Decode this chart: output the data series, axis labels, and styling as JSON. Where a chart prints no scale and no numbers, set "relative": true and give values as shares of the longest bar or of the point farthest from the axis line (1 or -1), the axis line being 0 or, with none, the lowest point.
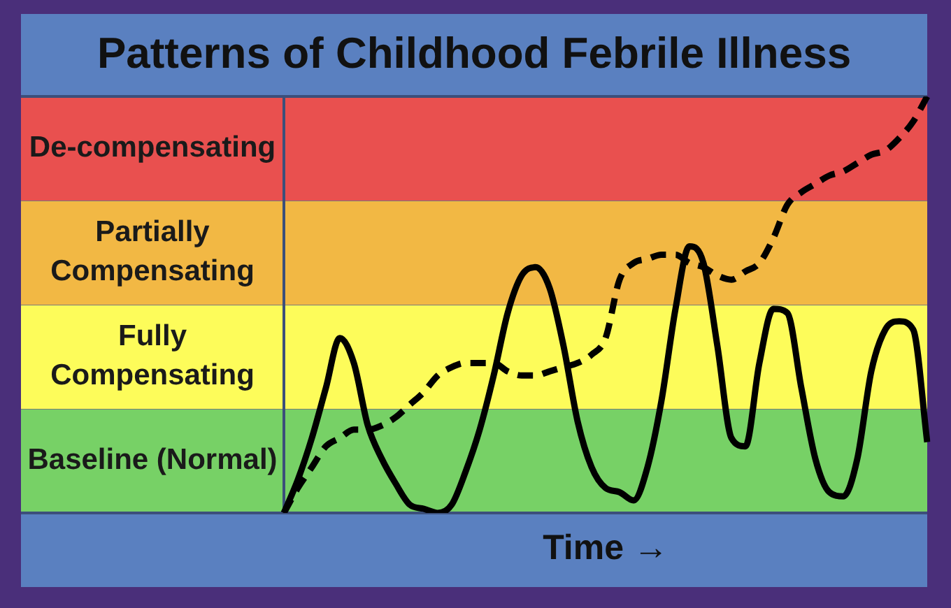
{
  "chart_data": {
    "type": "line",
    "title": "Patterns of Childhood Febrile Illness",
    "xlabel": "Time →",
    "relative": true,
    "categories": [
      null,
      null,
      null,
      null,
      null,
      null,
      null,
      null,
      null,
      null,
      null,
      null,
      null,
      null,
      null,
      null,
      null,
      null,
      null,
      null,
      null,
      null,
      null,
      null,
      null,
      null,
      null,
      null,
      null,
      null,
      null,
      null,
      null,
      null,
      null,
      null,
      null,
      null,
      null,
      null,
      null,
      null,
      null,
      null,
      null,
      null,
      null
    ],
    "series": [
      {
        "color": "#000000",
        "line_style": "solid",
        "values": [
          0,
          0.08,
          0.18,
          0.3,
          0.42,
          0.36,
          0.21,
          0.13,
          0.07,
          0.02,
          0.01,
          0,
          0.02,
          0.1,
          0.2,
          0.33,
          0.48,
          0.57,
          0.59,
          0.54,
          0.4,
          0.22,
          0.11,
          0.06,
          0.05,
          0.03,
          0.11,
          0.27,
          0.49,
          0.64,
          0.6,
          0.4,
          0.18,
          0.16,
          0.36,
          0.49,
          0.48,
          0.3,
          0.13,
          0.05,
          0.04,
          0.13,
          0.34,
          0.44,
          0.46,
          0.44,
          0.17
        ]
      },
      {
        "color": "#000000",
        "line_style": "dashed",
        "values": [
          0,
          0.06,
          0.11,
          0.16,
          0.18,
          0.2,
          0.2,
          0.21,
          0.23,
          0.26,
          0.29,
          0.33,
          0.35,
          0.36,
          0.36,
          0.36,
          0.34,
          0.33,
          0.33,
          0.34,
          0.35,
          0.36,
          0.38,
          0.42,
          0.56,
          0.6,
          0.61,
          0.62,
          0.62,
          0.6,
          0.59,
          0.57,
          0.56,
          0.58,
          0.6,
          0.66,
          0.74,
          0.77,
          0.79,
          0.81,
          0.82,
          0.84,
          0.86,
          0.87,
          0.9,
          0.94,
          1.0
        ]
      }
    ],
    "bands": [
      {
        "axis": "y",
        "from": 0,
        "to": 0.25,
        "label": "Baseline (Normal)",
        "color": "#77d166"
      },
      {
        "axis": "y",
        "from": 0.25,
        "to": 0.5,
        "label": "Fully Compensating",
        "color": "#fdfc5a"
      },
      {
        "axis": "y",
        "from": 0.5,
        "to": 0.75,
        "label": "Partially Compensating",
        "color": "#f2b844"
      },
      {
        "axis": "y",
        "from": 0.75,
        "to": 1,
        "label": "De-compensating",
        "color": "#e9504f"
      }
    ]
  }
}
